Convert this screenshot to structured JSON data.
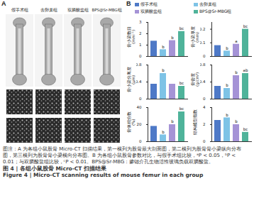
{
  "panel_A": {
    "label": "A",
    "groups": [
      "假手术组",
      "去卵巢组",
      "双膦酸盐组",
      "BPS@Sr-MBG组"
    ]
  },
  "panel_B": {
    "label": "B",
    "legend": {
      "names": [
        "假手术组",
        "去卵巢组",
        "双膦酸盐组",
        "BPS@Sr-MBG组"
      ],
      "colors": [
        "#4e79c7",
        "#7ec3e6",
        "#a593d6",
        "#4fb39a"
      ]
    }
  },
  "chart_data": [
    {
      "type": "bar",
      "ylabel": "骨小梁数目\n(mm⁻¹)",
      "categories": [
        "假手术组",
        "去卵巢组",
        "双膦酸盐组",
        "BPS@Sr-MBG组"
      ],
      "values": [
        1.35,
        0.6,
        1.4,
        2.2
      ],
      "colors": [
        "#4e79c7",
        "#7ec3e6",
        "#a593d6",
        "#4fb39a"
      ],
      "annotations": [
        null,
        "b",
        "b",
        "bc"
      ],
      "ylim": [
        0,
        3
      ],
      "yticks": [
        0,
        1,
        2,
        3
      ],
      "tick_labels": "y",
      "legend": "top"
    },
    {
      "type": "bar",
      "ylabel": "骨小梁厚度\n(mm)",
      "categories": [
        "假手术组",
        "去卵巢组",
        "双膦酸盐组",
        "BPS@Sr-MBG组"
      ],
      "values": [
        0.08,
        0.04,
        0.09,
        0.2
      ],
      "colors": [
        "#4e79c7",
        "#7ec3e6",
        "#a593d6",
        "#4fb39a"
      ],
      "annotations": [
        null,
        "b",
        "a",
        "bc"
      ],
      "ylim": [
        0,
        0.25
      ],
      "yticks": [
        0,
        0.1,
        0.2
      ],
      "tick_labels": "y",
      "legend": "top"
    },
    {
      "type": "bar",
      "ylabel": "骨小梁分离度\n(μm)",
      "categories": [
        "假手术组",
        "去卵巢组",
        "双膦酸盐组",
        "BPS@Sr-MBG组"
      ],
      "values": [
        0.35,
        0.6,
        0.35,
        0.3
      ],
      "colors": [
        "#4e79c7",
        "#7ec3e6",
        "#a593d6",
        "#4fb39a"
      ],
      "annotations": [
        null,
        "b",
        null,
        "bc"
      ],
      "ylim": [
        0,
        0.8
      ],
      "yticks": [
        0,
        0.4,
        0.8
      ],
      "tick_labels": "y",
      "legend": "top"
    },
    {
      "type": "bar",
      "ylabel": "骨密度\n(g/cm³)",
      "categories": [
        "假手术组",
        "去卵巢组",
        "双膦酸盐组",
        "BPS@Sr-MBG组"
      ],
      "values": [
        0.3,
        0.25,
        0.55,
        0.6
      ],
      "colors": [
        "#4e79c7",
        "#7ec3e6",
        "#a593d6",
        "#4fb39a"
      ],
      "annotations": [
        null,
        "b",
        "b",
        "ab"
      ],
      "ylim": [
        0,
        0.8
      ],
      "yticks": [
        0,
        0.4,
        0.8
      ],
      "tick_labels": "y",
      "legend": "top"
    },
    {
      "type": "bar",
      "ylabel": "骨体积分数\n(%)",
      "categories": [
        "假手术组",
        "去卵巢组",
        "双膦酸盐组",
        "BPS@Sr-MBG组"
      ],
      "values": [
        18,
        8,
        20,
        35
      ],
      "colors": [
        "#4e79c7",
        "#7ec3e6",
        "#a593d6",
        "#4fb39a"
      ],
      "annotations": [
        null,
        "b",
        "b",
        "bc"
      ],
      "ylim": [
        0,
        40
      ],
      "yticks": [
        0,
        20,
        40
      ],
      "tick_labels": "y",
      "legend": "top"
    },
    {
      "type": "bar",
      "ylabel": "结构模型指数",
      "categories": [
        "假手术组",
        "去卵巢组",
        "双膦酸盐组",
        "BPS@Sr-MBG组"
      ],
      "values": [
        2.5,
        2.8,
        2.0,
        1.1
      ],
      "colors": [
        "#4e79c7",
        "#7ec3e6",
        "#a593d6",
        "#4fb39a"
      ],
      "annotations": [
        null,
        "b",
        "b",
        "bc"
      ],
      "ylim": [
        0,
        4
      ],
      "yticks": [
        0,
        2,
        4
      ],
      "tick_labels": "y",
      "legend": "top"
    }
  ],
  "caption": "图注：A 为各组小鼠股骨 Micro-CT 扫描结果，第一横列为股骨最大剖面图，第二横列为股骨骨小梁纵向分布图，第三横列为股骨骨小梁横向分布图。B 为各组小鼠股骨参数对比，与假手术组比较，ᵃP < 0.05，ᵇP < 0.01；与双膦酸盐组比较，ᶜP < 0.01。BPS@Sr-MBG：掺锶介孔生物活性玻璃负载双膦酸盐。",
  "figure_title_cn": "图 4 | 各组小鼠股骨 Micro-CT 扫描结果",
  "figure_title_en": "Figure 4 | Micro-CT scanning results of mouse femur in each group"
}
